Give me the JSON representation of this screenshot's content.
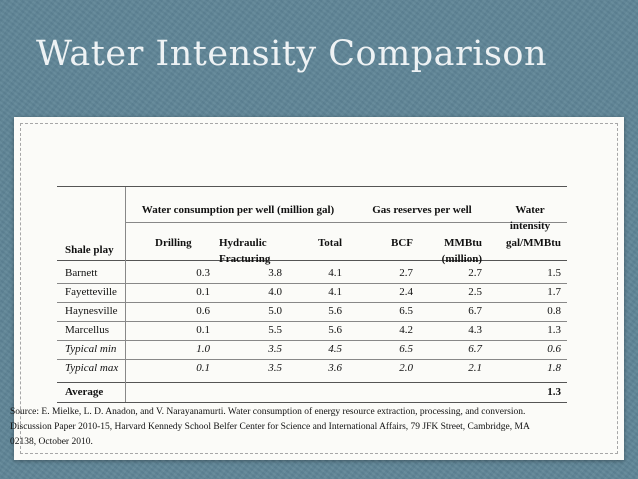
{
  "slide": {
    "title": "Water Intensity Comparison"
  },
  "table": {
    "group_headers": {
      "water": "Water consumption per well (million gal)",
      "gas": "Gas reserves per well",
      "intensity_line1": "Water",
      "intensity_line2": "intensity"
    },
    "sub_headers": {
      "shale_play": "Shale play",
      "drilling": "Drilling",
      "hydraulic_line1": "Hydraulic",
      "hydraulic_line2": "Fracturing",
      "total": "Total",
      "bcf": "BCF",
      "mmbtu_line1": "MMBtu",
      "mmbtu_line2": "(million)",
      "intensity_unit": "gal/MMBtu"
    },
    "rows": [
      {
        "play": "Barnett",
        "drilling": "0.3",
        "hydraulic": "3.8",
        "total": "4.1",
        "bcf": "2.7",
        "mmbtu": "2.7",
        "intensity": "1.5",
        "italic": false
      },
      {
        "play": "Fayetteville",
        "drilling": "0.1",
        "hydraulic": "4.0",
        "total": "4.1",
        "bcf": "2.4",
        "mmbtu": "2.5",
        "intensity": "1.7",
        "italic": false
      },
      {
        "play": "Haynesville",
        "drilling": "0.6",
        "hydraulic": "5.0",
        "total": "5.6",
        "bcf": "6.5",
        "mmbtu": "6.7",
        "intensity": "0.8",
        "italic": false
      },
      {
        "play": "Marcellus",
        "drilling": "0.1",
        "hydraulic": "5.5",
        "total": "5.6",
        "bcf": "4.2",
        "mmbtu": "4.3",
        "intensity": "1.3",
        "italic": false
      },
      {
        "play": "Typical min",
        "drilling": "1.0",
        "hydraulic": "3.5",
        "total": "4.5",
        "bcf": "6.5",
        "mmbtu": "6.7",
        "intensity": "0.6",
        "italic": true
      },
      {
        "play": "Typical max",
        "drilling": "0.1",
        "hydraulic": "3.5",
        "total": "3.6",
        "bcf": "2.0",
        "mmbtu": "2.1",
        "intensity": "1.8",
        "italic": true
      }
    ],
    "average": {
      "label": "Average",
      "value": "1.3"
    }
  },
  "source": {
    "text": "Source: E. Mielke, L. D. Anadon, and V. Narayanamurti. Water consumption of energy resource extraction, processing, and conversion. Discussion Paper 2010-15, Harvard Kennedy School Belfer Center for Science and International Affairs, 79 JFK Street, Cambridge, MA 02138, October 2010."
  }
}
